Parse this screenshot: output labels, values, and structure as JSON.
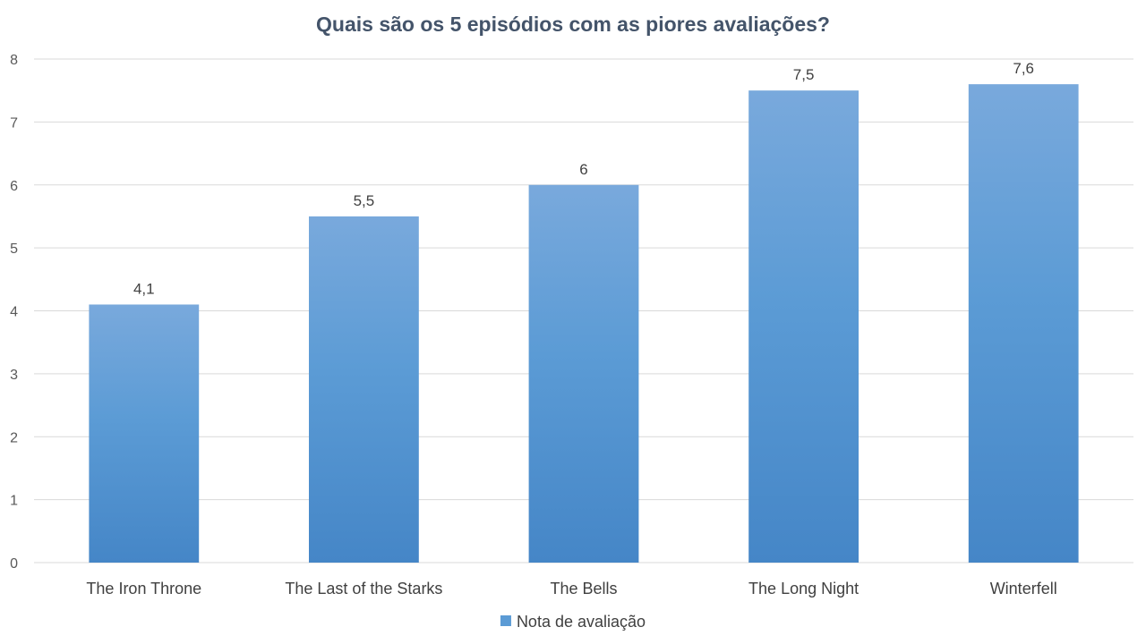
{
  "chart_data": {
    "type": "bar",
    "title": "Quais são os 5 episódios com as piores avaliações?",
    "categories": [
      "The Iron Throne",
      "The Last of the Starks",
      "The Bells",
      "The Long Night",
      "Winterfell"
    ],
    "series": [
      {
        "name": "Nota de avaliação",
        "values": [
          4.1,
          5.5,
          6,
          7.5,
          7.6
        ],
        "labels": [
          "4,1",
          "5,5",
          "6",
          "7,5",
          "7,6"
        ]
      }
    ],
    "ylim": [
      0,
      8
    ],
    "yticks": [
      0,
      1,
      2,
      3,
      4,
      5,
      6,
      7,
      8
    ],
    "grid": true,
    "legend": "bottom",
    "colors": {
      "bar_top": "#79a9dc",
      "bar_mid": "#5b9bd5",
      "bar_bottom": "#4586c7",
      "grid": "#d9d9d9",
      "title": "#44546a"
    }
  }
}
